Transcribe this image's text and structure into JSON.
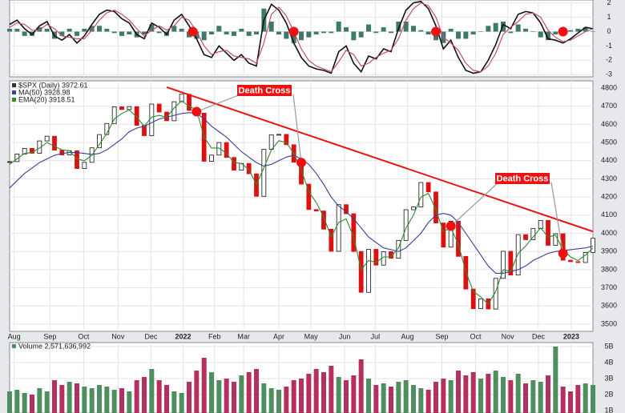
{
  "chart_data": [
    {
      "type": "line",
      "ylim": [
        -3.15,
        2.2
      ],
      "yticks": [
        2,
        1,
        0,
        -1,
        -2,
        -3
      ],
      "series": [
        {
          "color": "#111111",
          "values": [
            0.5,
            0.8,
            0.2,
            -0.2,
            0.4,
            0.7,
            -0.3,
            -0.6,
            -0.2,
            -0.8,
            -0.3,
            0.5,
            1.2,
            1.5,
            1.4,
            0.9,
            0.6,
            -0.2,
            -0.5,
            0.6,
            0.3,
            -0.2,
            0.8,
            1.2,
            0.4,
            -0.5,
            -1.6,
            -1.8,
            -1.0,
            -1.5,
            -2.0,
            -1.6,
            -2.2,
            -2.4,
            0.8,
            1.9,
            1.5,
            0.6,
            -0.8,
            -1.8,
            -2.4,
            -2.6,
            -2.7,
            -2.9,
            -1.4,
            -1.0,
            -2.2,
            -2.8,
            -1.7,
            -1.9,
            -1.2,
            -1.4,
            0.2,
            1.5,
            2.0,
            2.1,
            1.6,
            0.4,
            -1.2,
            -0.6,
            -1.8,
            -2.7,
            -2.9,
            -2.8,
            -2.0,
            -0.9,
            0.5,
            0.2,
            1.2,
            1.4,
            1.3,
            0.6,
            -0.5,
            -0.6,
            -0.8,
            -0.5,
            -0.1,
            0.3,
            0.2
          ]
        },
        {
          "color": "#c0506e",
          "values": [
            0.3,
            0.6,
            0.5,
            0.1,
            0.1,
            0.5,
            0.2,
            -0.3,
            -0.4,
            -0.5,
            -0.5,
            0.1,
            0.8,
            1.3,
            1.5,
            1.2,
            0.8,
            0.2,
            -0.3,
            0.1,
            0.4,
            0.1,
            0.4,
            1.0,
            0.8,
            0.0,
            -1.0,
            -1.6,
            -1.4,
            -1.3,
            -1.7,
            -1.8,
            -1.9,
            -2.2,
            -0.8,
            1.2,
            1.7,
            1.1,
            0.0,
            -1.2,
            -2.0,
            -2.4,
            -2.6,
            -2.8,
            -2.1,
            -1.3,
            -1.6,
            -2.4,
            -2.2,
            -1.8,
            -1.5,
            -1.3,
            -0.5,
            0.8,
            1.6,
            2.0,
            1.8,
            1.0,
            -0.4,
            -0.8,
            -1.3,
            -2.2,
            -2.7,
            -2.8,
            -2.4,
            -1.5,
            -0.2,
            0.3,
            0.7,
            1.2,
            1.3,
            1.0,
            0.1,
            -0.4,
            -0.7,
            -0.6,
            -0.3,
            0.0,
            0.2
          ]
        }
      ],
      "histogram": {
        "color": "#3d7a6a",
        "values": [
          0.2,
          0.2,
          -0.3,
          -0.3,
          0.3,
          0.2,
          -0.5,
          -0.3,
          0.2,
          -0.3,
          0.2,
          0.4,
          0.4,
          0.2,
          -0.1,
          -0.3,
          -0.2,
          -0.4,
          -0.2,
          0.5,
          -0.1,
          -0.3,
          0.4,
          0.2,
          -0.4,
          -0.5,
          -0.6,
          -0.2,
          0.4,
          -0.2,
          -0.3,
          0.2,
          -0.3,
          -0.2,
          1.6,
          0.7,
          -0.2,
          -0.5,
          -0.8,
          -0.6,
          -0.4,
          -0.2,
          -0.1,
          -0.1,
          0.7,
          0.3,
          -0.6,
          -0.4,
          0.5,
          -0.1,
          0.3,
          -0.1,
          0.7,
          0.7,
          0.4,
          0.1,
          -0.2,
          -0.6,
          -0.8,
          0.2,
          -0.5,
          -0.5,
          -0.2,
          0,
          0.4,
          0.6,
          0.7,
          -0.1,
          0.5,
          0.2,
          0,
          -0.4,
          -0.6,
          -0.2,
          -0.1,
          0.1,
          0.2,
          0.3,
          0
        ]
      },
      "signal_points": {
        "color": "#ee1111",
        "x": [
          24.5,
          38,
          57,
          74
        ],
        "y": [
          0,
          0,
          0,
          0
        ]
      }
    },
    {
      "type": "line",
      "x": [
        0,
        1,
        2,
        3,
        4,
        5,
        6,
        7,
        8,
        9,
        10,
        11,
        12,
        13,
        14,
        15,
        16,
        17,
        18,
        19,
        20,
        21,
        22,
        23,
        24,
        25,
        26,
        27,
        28,
        29,
        30,
        31,
        32,
        33,
        34,
        35,
        36,
        37,
        38,
        39,
        40,
        41,
        42,
        43,
        44,
        45,
        46,
        47,
        48,
        49,
        50,
        51,
        52,
        53,
        54,
        55,
        56,
        57,
        58,
        59,
        60,
        61,
        62,
        63,
        64,
        65,
        66,
        67,
        68,
        69,
        70,
        71,
        72,
        73,
        74,
        75,
        76,
        77,
        78
      ],
      "xlim": [
        0,
        78
      ],
      "xticks": [
        {
          "value": 0.6,
          "label": "Aug"
        },
        {
          "value": 5.4,
          "label": "Sep"
        },
        {
          "value": 9.9,
          "label": "Oct"
        },
        {
          "value": 14.5,
          "label": "Nov"
        },
        {
          "value": 18.9,
          "label": "Dec"
        },
        {
          "value": 23.2,
          "label": "2022"
        },
        {
          "value": 27.4,
          "label": "Feb"
        },
        {
          "value": 31.3,
          "label": "Mar"
        },
        {
          "value": 36.0,
          "label": "Apr"
        },
        {
          "value": 40.3,
          "label": "May"
        },
        {
          "value": 44.8,
          "label": "Jun"
        },
        {
          "value": 48.9,
          "label": "Jul"
        },
        {
          "value": 53.2,
          "label": "Aug"
        },
        {
          "value": 57.8,
          "label": "Sep"
        },
        {
          "value": 62.3,
          "label": "Oct"
        },
        {
          "value": 66.6,
          "label": "Nov"
        },
        {
          "value": 70.7,
          "label": "Dec"
        },
        {
          "value": 75.1,
          "label": "2023"
        }
      ],
      "ylim": [
        3460,
        4840
      ],
      "yticks": [
        3500,
        3600,
        3700,
        3800,
        3900,
        4000,
        4100,
        4200,
        4300,
        4400,
        4500,
        4600,
        4700,
        4800
      ],
      "series": [
        {
          "name": "$SPX (Daily) 3972.61",
          "color": "#111111",
          "down_color": "#dd1111",
          "values": [
            4395,
            4437,
            4468,
            4441,
            4509,
            4535,
            4458,
            4432,
            4455,
            4357,
            4391,
            4471,
            4544,
            4605,
            4697,
            4682,
            4698,
            4595,
            4538,
            4712,
            4668,
            4620,
            4725,
            4766,
            4677,
            4662,
            4397,
            4431,
            4500,
            4418,
            4348,
            4385,
            4328,
            4204,
            4463,
            4543,
            4545,
            4488,
            4392,
            4271,
            4131,
            4123,
            4023,
            3901,
            4158,
            4108,
            3900,
            3675,
            3912,
            3825,
            3899,
            3863,
            3961,
            4130,
            4145,
            4280,
            4228,
            4057,
            3924,
            4067,
            3873,
            3693,
            3585,
            3639,
            3583,
            3752,
            3901,
            3770,
            3993,
            3965,
            4026,
            4071,
            3934,
            3998,
            3852,
            3844,
            3839,
            3895,
            3972.61
          ]
        },
        {
          "name": "MA(50) 3928.98",
          "color": "#3a3f9a",
          "values": [
            4250,
            4290,
            4330,
            4360,
            4390,
            4410,
            4430,
            4440,
            4445,
            4445,
            4440,
            4435,
            4440,
            4460,
            4490,
            4520,
            4560,
            4580,
            4590,
            4610,
            4630,
            4640,
            4650,
            4660,
            4665,
            4660,
            4630,
            4590,
            4560,
            4530,
            4490,
            4450,
            4420,
            4390,
            4370,
            4380,
            4400,
            4420,
            4430,
            4410,
            4380,
            4330,
            4270,
            4200,
            4150,
            4120,
            4080,
            4030,
            3980,
            3950,
            3920,
            3910,
            3900,
            3920,
            3960,
            4000,
            4060,
            4100,
            4110,
            4100,
            4060,
            4000,
            3940,
            3880,
            3820,
            3780,
            3780,
            3790,
            3800,
            3820,
            3850,
            3870,
            3890,
            3900,
            3905,
            3910,
            3915,
            3920,
            3929
          ]
        },
        {
          "name": "EMA(20) 3918.51",
          "color": "#2e8b2e",
          "values": [
            4380,
            4410,
            4440,
            4445,
            4470,
            4500,
            4480,
            4460,
            4455,
            4410,
            4400,
            4430,
            4490,
            4550,
            4630,
            4660,
            4680,
            4640,
            4590,
            4640,
            4650,
            4640,
            4690,
            4730,
            4700,
            4680,
            4530,
            4470,
            4470,
            4440,
            4390,
            4385,
            4350,
            4270,
            4360,
            4460,
            4510,
            4500,
            4440,
            4350,
            4230,
            4170,
            4090,
            3980,
            4060,
            4080,
            3980,
            3800,
            3850,
            3840,
            3870,
            3870,
            3920,
            4030,
            4100,
            4200,
            4220,
            4130,
            4010,
            4030,
            3940,
            3790,
            3680,
            3650,
            3610,
            3680,
            3800,
            3790,
            3890,
            3930,
            3980,
            4030,
            3980,
            3990,
            3910,
            3870,
            3850,
            3880,
            3918.51
          ]
        }
      ],
      "trendline": {
        "color": "#ee1111",
        "x": [
          21,
          78
        ],
        "y": [
          4805,
          4010
        ]
      },
      "cross_points": {
        "color": "#ee1111",
        "x": [
          25,
          39,
          59,
          74
        ],
        "y": [
          4670,
          4390,
          4040,
          3890
        ]
      },
      "annotations": [
        "Death Cross",
        "Death Cross"
      ]
    },
    {
      "type": "bar",
      "title": "Volume 2,571,636,992",
      "ylim": [
        0.85,
        5.25
      ],
      "yticks": [
        {
          "value": 1,
          "label": "1B"
        },
        {
          "value": 2,
          "label": "2B"
        },
        {
          "value": 3,
          "label": "3B"
        },
        {
          "value": 4,
          "label": "4B"
        },
        {
          "value": 5,
          "label": "5B"
        }
      ],
      "up_color": "#4f8f5f",
      "down_color": "#b5305e",
      "values": [
        2.2,
        2.3,
        2.1,
        2.0,
        2.4,
        2.2,
        2.9,
        2.6,
        2.8,
        2.7,
        2.5,
        2.4,
        2.6,
        2.5,
        2.3,
        2.4,
        2.2,
        2.9,
        3.1,
        3.6,
        2.9,
        2.6,
        2.2,
        2.1,
        2.8,
        3.5,
        4.3,
        3.4,
        2.9,
        3.0,
        2.8,
        3.2,
        3.4,
        3.6,
        2.7,
        2.4,
        2.3,
        2.5,
        2.9,
        3.0,
        3.3,
        3.6,
        3.4,
        3.8,
        3.1,
        2.9,
        3.2,
        4.2,
        3.0,
        2.6,
        2.7,
        2.5,
        2.8,
        2.9,
        2.6,
        2.4,
        2.3,
        2.8,
        3.0,
        2.9,
        3.5,
        3.2,
        3.4,
        3.0,
        3.3,
        3.5,
        3.1,
        2.9,
        3.3,
        2.7,
        2.9,
        2.8,
        3.2,
        5.0,
        2.5,
        2.2,
        2.6,
        2.7,
        2.6
      ]
    }
  ]
}
